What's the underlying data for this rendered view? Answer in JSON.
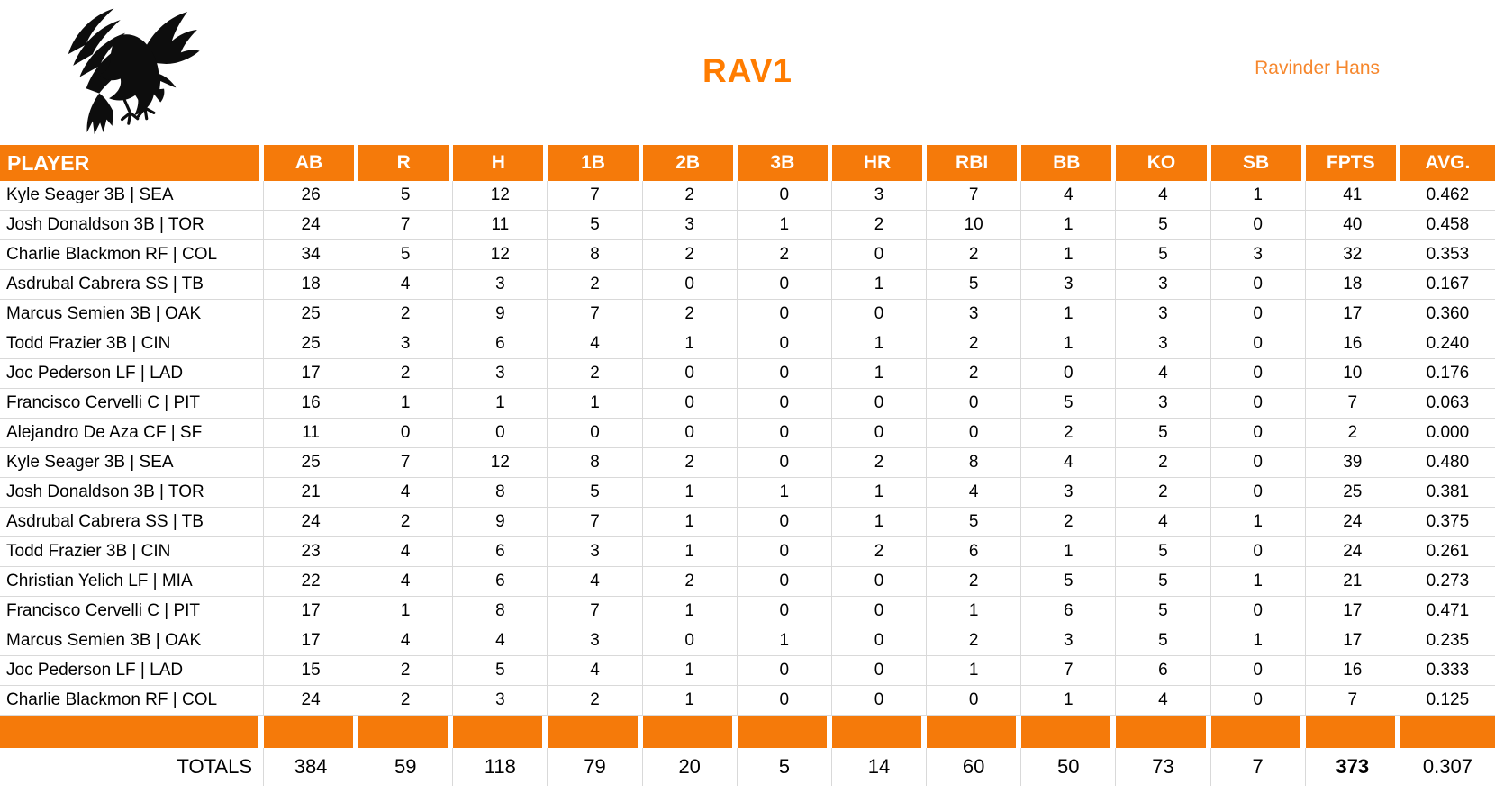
{
  "header": {
    "title": "RAV1",
    "author": "Ravinder Hans",
    "logo_icon": "raven-logo"
  },
  "colors": {
    "table_orange": "#F57A0A",
    "title_orange": "#FF7C00",
    "author_orange": "#F6872D",
    "grid_line": "#D9D9D9",
    "header_text": "#FFFFFF"
  },
  "table": {
    "columns": [
      "PLAYER",
      "AB",
      "R",
      "H",
      "1B",
      "2B",
      "3B",
      "HR",
      "RBI",
      "BB",
      "KO",
      "SB",
      "FPTS",
      "AVG."
    ],
    "rows": [
      [
        "Kyle Seager 3B | SEA",
        "26",
        "5",
        "12",
        "7",
        "2",
        "0",
        "3",
        "7",
        "4",
        "4",
        "1",
        "41",
        "0.462"
      ],
      [
        "Josh Donaldson 3B | TOR",
        "24",
        "7",
        "11",
        "5",
        "3",
        "1",
        "2",
        "10",
        "1",
        "5",
        "0",
        "40",
        "0.458"
      ],
      [
        "Charlie Blackmon RF | COL",
        "34",
        "5",
        "12",
        "8",
        "2",
        "2",
        "0",
        "2",
        "1",
        "5",
        "3",
        "32",
        "0.353"
      ],
      [
        "Asdrubal Cabrera SS | TB",
        "18",
        "4",
        "3",
        "2",
        "0",
        "0",
        "1",
        "5",
        "3",
        "3",
        "0",
        "18",
        "0.167"
      ],
      [
        "Marcus Semien 3B | OAK",
        "25",
        "2",
        "9",
        "7",
        "2",
        "0",
        "0",
        "3",
        "1",
        "3",
        "0",
        "17",
        "0.360"
      ],
      [
        "Todd Frazier 3B | CIN",
        "25",
        "3",
        "6",
        "4",
        "1",
        "0",
        "1",
        "2",
        "1",
        "3",
        "0",
        "16",
        "0.240"
      ],
      [
        "Joc Pederson LF | LAD",
        "17",
        "2",
        "3",
        "2",
        "0",
        "0",
        "1",
        "2",
        "0",
        "4",
        "0",
        "10",
        "0.176"
      ],
      [
        "Francisco Cervelli C | PIT",
        "16",
        "1",
        "1",
        "1",
        "0",
        "0",
        "0",
        "0",
        "5",
        "3",
        "0",
        "7",
        "0.063"
      ],
      [
        "Alejandro De Aza CF | SF",
        "11",
        "0",
        "0",
        "0",
        "0",
        "0",
        "0",
        "0",
        "2",
        "5",
        "0",
        "2",
        "0.000"
      ],
      [
        "Kyle Seager 3B | SEA",
        "25",
        "7",
        "12",
        "8",
        "2",
        "0",
        "2",
        "8",
        "4",
        "2",
        "0",
        "39",
        "0.480"
      ],
      [
        "Josh Donaldson 3B | TOR",
        "21",
        "4",
        "8",
        "5",
        "1",
        "1",
        "1",
        "4",
        "3",
        "2",
        "0",
        "25",
        "0.381"
      ],
      [
        "Asdrubal Cabrera SS | TB",
        "24",
        "2",
        "9",
        "7",
        "1",
        "0",
        "1",
        "5",
        "2",
        "4",
        "1",
        "24",
        "0.375"
      ],
      [
        "Todd Frazier 3B | CIN",
        "23",
        "4",
        "6",
        "3",
        "1",
        "0",
        "2",
        "6",
        "1",
        "5",
        "0",
        "24",
        "0.261"
      ],
      [
        "Christian Yelich LF | MIA",
        "22",
        "4",
        "6",
        "4",
        "2",
        "0",
        "0",
        "2",
        "5",
        "5",
        "1",
        "21",
        "0.273"
      ],
      [
        "Francisco Cervelli C | PIT",
        "17",
        "1",
        "8",
        "7",
        "1",
        "0",
        "0",
        "1",
        "6",
        "5",
        "0",
        "17",
        "0.471"
      ],
      [
        "Marcus Semien 3B | OAK",
        "17",
        "4",
        "4",
        "3",
        "0",
        "1",
        "0",
        "2",
        "3",
        "5",
        "1",
        "17",
        "0.235"
      ],
      [
        "Joc Pederson LF | LAD",
        "15",
        "2",
        "5",
        "4",
        "1",
        "0",
        "0",
        "1",
        "7",
        "6",
        "0",
        "16",
        "0.333"
      ],
      [
        "Charlie Blackmon RF | COL",
        "24",
        "2",
        "3",
        "2",
        "1",
        "0",
        "0",
        "0",
        "1",
        "4",
        "0",
        "7",
        "0.125"
      ]
    ],
    "separator_row": true,
    "totals": [
      "TOTALS",
      "384",
      "59",
      "118",
      "79",
      "20",
      "5",
      "14",
      "60",
      "50",
      "73",
      "7",
      "373",
      "0.307"
    ],
    "totals_bold_column": "FPTS"
  }
}
